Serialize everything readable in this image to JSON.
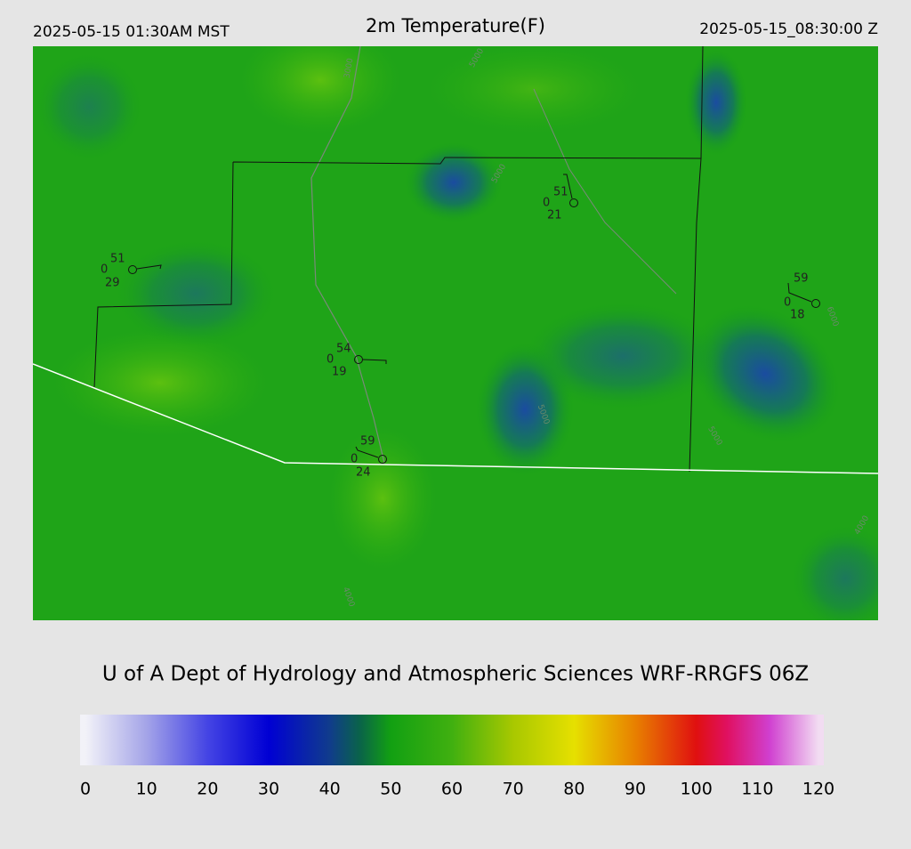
{
  "header": {
    "local_time": "2025-05-15 01:30AM MST",
    "title": "2m Temperature(F)",
    "valid_time": "2025-05-15_08:30:00 Z"
  },
  "stations": [
    {
      "temp": "51",
      "other": "0",
      "dew": "29"
    },
    {
      "temp": "51",
      "other": "0",
      "dew": "21"
    },
    {
      "temp": "59",
      "other": "0",
      "dew": "18"
    },
    {
      "temp": "54",
      "other": "0",
      "dew": "19"
    },
    {
      "temp": "59",
      "other": "0",
      "dew": "24"
    }
  ],
  "contour_labels": [
    "3000",
    "5000",
    "5000",
    "5000",
    "5000",
    "6000",
    "4000",
    "4000"
  ],
  "footer": "U of A Dept of Hydrology and Atmospheric Sciences WRF-RRGFS 06Z",
  "colorbar": {
    "range": [
      0,
      120
    ],
    "ticks": [
      0,
      10,
      20,
      30,
      40,
      50,
      60,
      70,
      80,
      90,
      100,
      110,
      120
    ],
    "stops": [
      {
        "value": 0,
        "color": "#f2f2f8"
      },
      {
        "value": 10,
        "color": "#a4a4e8"
      },
      {
        "value": 20,
        "color": "#4444e4"
      },
      {
        "value": 30,
        "color": "#0000d4"
      },
      {
        "value": 40,
        "color": "#103c8c"
      },
      {
        "value": 45,
        "color": "#0a6448"
      },
      {
        "value": 50,
        "color": "#12a012"
      },
      {
        "value": 60,
        "color": "#40b010"
      },
      {
        "value": 70,
        "color": "#a8c800"
      },
      {
        "value": 80,
        "color": "#e6e000"
      },
      {
        "value": 90,
        "color": "#e88000"
      },
      {
        "value": 100,
        "color": "#e01010"
      },
      {
        "value": 105,
        "color": "#e01060"
      },
      {
        "value": 112,
        "color": "#d040d0"
      },
      {
        "value": 120,
        "color": "#f2dcf2"
      }
    ]
  }
}
